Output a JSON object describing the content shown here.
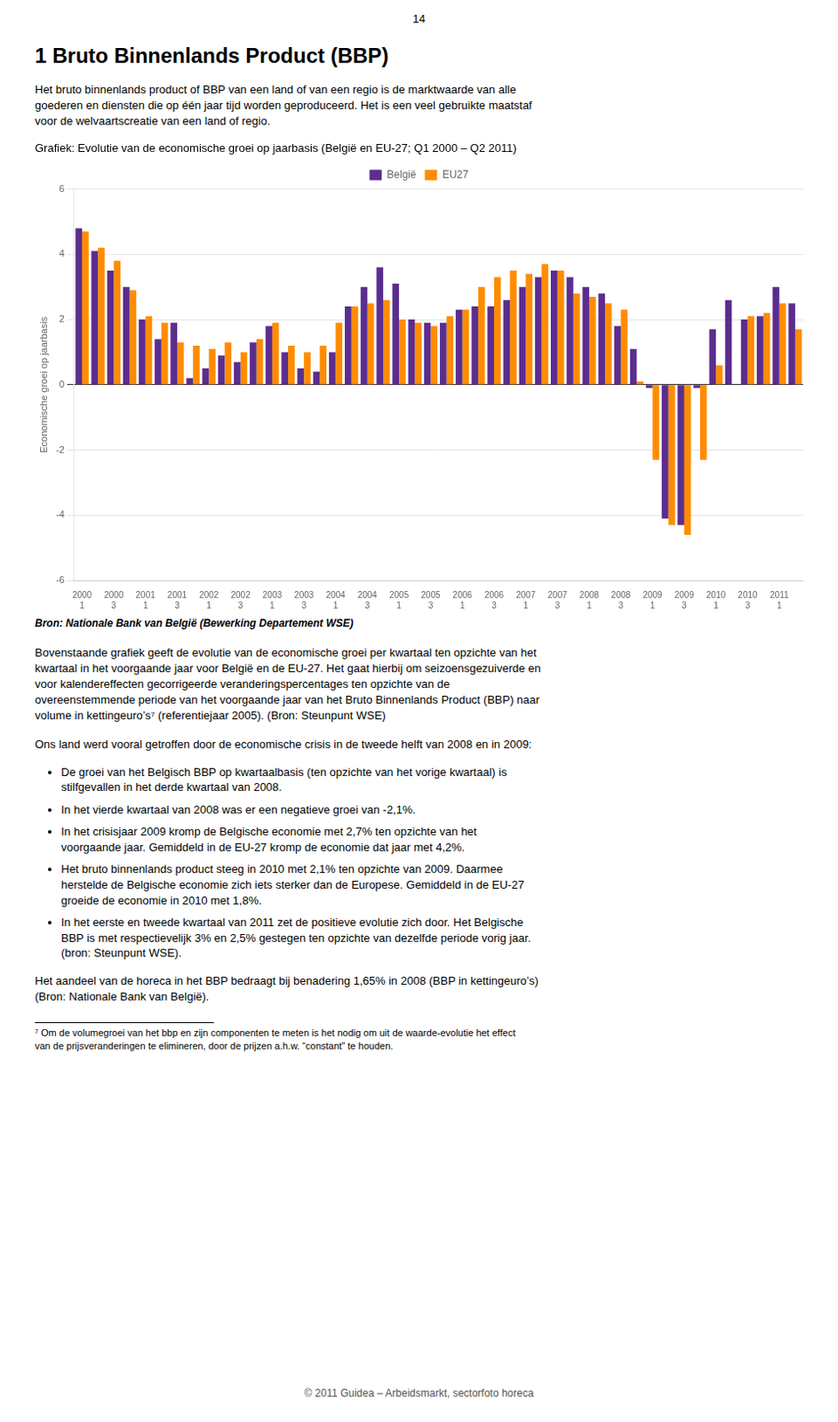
{
  "chart_data": {
    "type": "bar",
    "title": "Grafiek: Evolutie van de economische groei op jaarbasis (België en EU-27; Q1 2000 – Q2 2011)",
    "y_label": "Economische groei op jaarbasis",
    "categories": [
      "2000\n1",
      null,
      "2000\n3",
      null,
      "2001\n1",
      null,
      "2001\n3",
      null,
      "2002\n1",
      null,
      "2002\n3",
      null,
      "2003\n1",
      null,
      "2003\n3",
      null,
      "2004\n1",
      null,
      "2004\n3",
      null,
      "2005\n1",
      null,
      "2005\n3",
      null,
      "2006\n1",
      null,
      "2006\n3",
      null,
      "2007\n1",
      null,
      "2007\n3",
      null,
      "2008\n1",
      null,
      "2008\n3",
      null,
      "2009\n1",
      null,
      "2009\n3",
      null,
      "2010\n1",
      null,
      "2010\n3",
      null,
      "2011\n1",
      null
    ],
    "series": [
      {
        "name": "België",
        "color": "#5B2D8E",
        "values": [
          4.8,
          4.1,
          3.5,
          3.0,
          2.0,
          1.4,
          1.9,
          0.2,
          0.5,
          0.9,
          0.7,
          1.3,
          1.8,
          1.0,
          0.5,
          0.4,
          1.0,
          2.4,
          3.0,
          3.6,
          3.1,
          2.0,
          1.9,
          1.9,
          2.3,
          2.4,
          2.4,
          2.6,
          3.0,
          3.3,
          3.5,
          3.3,
          3.0,
          2.8,
          1.8,
          1.1,
          -0.1,
          -4.1,
          -4.3,
          -0.1,
          1.7,
          2.6,
          2.0,
          2.1,
          3.0,
          2.5
        ]
      },
      {
        "name": "EU27",
        "color": "#FF8C00",
        "values": [
          4.7,
          4.2,
          3.8,
          2.9,
          2.1,
          1.9,
          1.3,
          1.2,
          1.1,
          1.3,
          1.0,
          1.4,
          1.9,
          1.2,
          1.0,
          1.2,
          1.9,
          2.4,
          2.5,
          2.6,
          2.0,
          1.9,
          1.8,
          2.1,
          2.3,
          3.0,
          3.3,
          3.5,
          3.4,
          3.7,
          3.5,
          2.8,
          2.7,
          2.5,
          2.3,
          0.1,
          -2.3,
          -4.3,
          -4.6,
          -2.3,
          0.6,
          0.0,
          2.1,
          2.2,
          2.5,
          1.7
        ]
      }
    ],
    "ylim": [
      -6,
      6
    ],
    "yticks": [
      -6,
      -4,
      -2,
      0,
      2,
      4,
      6
    ],
    "grid": true,
    "legend": "top"
  },
  "page": {
    "page_number": "14",
    "title": "1 Bruto Binnenlands Product (BBP)",
    "intro_text": "Het bruto binnenlands product of BBP van een land of van een regio is de marktwaarde van alle\ngoederen en diensten die op één jaar tijd worden geproduceerd. Het is een veel gebruikte maatstaf\nvoor de welvaartscreatie van een land of regio.",
    "source_text": "Bron: Nationale Bank van België (Bewerking Departement WSE)",
    "body_text1": "Bovenstaande grafiek geeft de evolutie van de economische groei per kwartaal ten opzichte van het\nkwartaal in het voorgaande jaar voor België en de EU-27. Het gaat hierbij om seizoensgezuiverde en\nvoor kalendereffecten gecorrigeerde veranderingspercentages ten opzichte van de\novereenstemmende periode van het voorgaande jaar van het Bruto Binnenlands Product (BBP) naar\nvolume in kettingeuro’s⁷ (referentiejaar 2005). (Bron: Steunpunt WSE)",
    "body_text2": "Ons land werd vooral getroffen door de economische crisis in de tweede helft van 2008 en in 2009:",
    "bullets": [
      "De groei van het Belgisch BBP op kwartaalbasis (ten opzichte van het vorige kwartaal) is\nstilfgevallen in het derde kwartaal van 2008.",
      "In het vierde kwartaal van 2008 was er een negatieve groei van -2,1%.",
      "In het crisisjaar 2009 kromp de Belgische economie met 2,7% ten opzichte van het\nvoorgaande jaar. Gemiddeld in de EU-27 kromp de economie dat jaar met 4,2%.",
      "Het bruto binnenlands product steeg in 2010 met 2,1% ten opzichte van 2009. Daarmee\nherstelde de Belgische economie zich iets sterker dan de Europese. Gemiddeld in de EU-27\ngroeide de economie in 2010 met 1,8%.",
      "In het eerste en tweede kwartaal van 2011 zet de positieve evolutie zich door. Het Belgische\nBBP is met respectievelijk 3% en 2,5% gestegen ten opzichte van dezelfde periode vorig jaar.\n(bron: Steunpunt WSE)."
    ],
    "last_para": "Het aandeel van de horeca in het BBP bedraagt bij benadering 1,65% in 2008 (BBP in kettingeuro’s)\n(Bron: Nationale Bank van België).",
    "footnote_text": "⁷ Om de volumegroei van het bbp en zijn componenten te meten is het nodig om uit de waarde-evolutie het effect\nvan de prijsveranderingen te elimineren, door de prijzen a.h.w. “constant” te houden.",
    "footer_text": "© 2011 Guidea – Arbeidsmarkt, sectorfoto horeca"
  }
}
